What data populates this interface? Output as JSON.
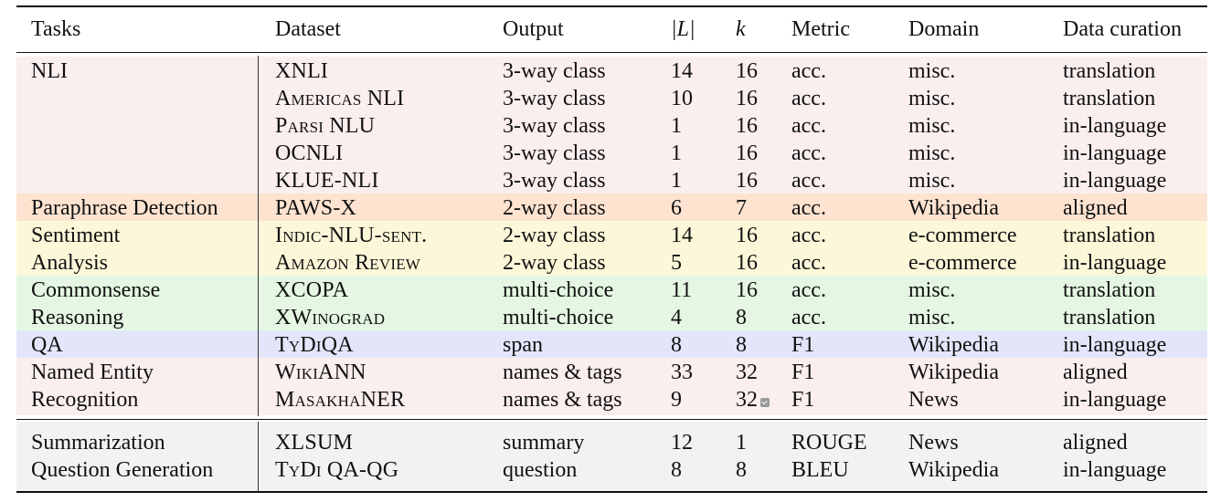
{
  "headers": {
    "tasks": "Tasks",
    "dataset": "Dataset",
    "output": "Output",
    "l": "|L|",
    "k": "k",
    "metric": "Metric",
    "domain": "Domain",
    "curation": "Data curation"
  },
  "colors": {
    "nli": "#fbeeee",
    "paraphrase": "#fde3d0",
    "sentiment": "#fdf7d9",
    "commonsense": "#e5f7e3",
    "qa": "#e3e6fa",
    "ner": "#fbeeee",
    "generation": "#f2f2f2"
  },
  "rows": [
    {
      "task": "NLI",
      "dataset": "XNLI",
      "output": "3-way class",
      "l": "14",
      "k": "16",
      "metric": "acc.",
      "domain": "misc.",
      "curation": "translation"
    },
    {
      "task": "",
      "dataset": "Americas NLI",
      "output": "3-way class",
      "l": "10",
      "k": "16",
      "metric": "acc.",
      "domain": "misc.",
      "curation": "translation"
    },
    {
      "task": "",
      "dataset": "Parsi NLU",
      "output": "3-way class",
      "l": "1",
      "k": "16",
      "metric": "acc.",
      "domain": "misc.",
      "curation": "in-language"
    },
    {
      "task": "",
      "dataset": "OCNLI",
      "output": "3-way class",
      "l": "1",
      "k": "16",
      "metric": "acc.",
      "domain": "misc.",
      "curation": "in-language"
    },
    {
      "task": "",
      "dataset": "KLUE-NLI",
      "output": "3-way class",
      "l": "1",
      "k": "16",
      "metric": "acc.",
      "domain": "misc.",
      "curation": "in-language"
    },
    {
      "task": "Paraphrase Detection",
      "dataset": "PAWS-X",
      "output": "2-way class",
      "l": "6",
      "k": "7",
      "metric": "acc.",
      "domain": "Wikipedia",
      "curation": "aligned"
    },
    {
      "task": "Sentiment",
      "dataset": "Indic-NLU-sent.",
      "output": "2-way class",
      "l": "14",
      "k": "16",
      "metric": "acc.",
      "domain": "e-commerce",
      "curation": "translation"
    },
    {
      "task": "Analysis",
      "dataset": "Amazon Review",
      "output": "2-way class",
      "l": "5",
      "k": "16",
      "metric": "acc.",
      "domain": "e-commerce",
      "curation": "in-language"
    },
    {
      "task": "Commonsense",
      "dataset": "XCOPA",
      "output": "multi-choice",
      "l": "11",
      "k": "16",
      "metric": "acc.",
      "domain": "misc.",
      "curation": "translation"
    },
    {
      "task": "Reasoning",
      "dataset": "XWinograd",
      "output": "multi-choice",
      "l": "4",
      "k": "8",
      "metric": "acc.",
      "domain": "misc.",
      "curation": "translation"
    },
    {
      "task": "QA",
      "dataset": "TyDiQA",
      "output": "span",
      "l": "8",
      "k": "8",
      "metric": "F1",
      "domain": "Wikipedia",
      "curation": "in-language"
    },
    {
      "task": "Named Entity",
      "dataset": "WikiANN",
      "output": "names & tags",
      "l": "33",
      "k": "32",
      "metric": "F1",
      "domain": "Wikipedia",
      "curation": "aligned"
    },
    {
      "task": "Recognition",
      "dataset": "MasakhaNER",
      "output": "names & tags",
      "l": "9",
      "k": "32",
      "metric": "F1",
      "domain": "News",
      "curation": "in-language"
    },
    {
      "task": "Summarization",
      "dataset": "XLSUM",
      "output": "summary",
      "l": "12",
      "k": "1",
      "metric": "ROUGE",
      "domain": "News",
      "curation": "aligned"
    },
    {
      "task": "Question Generation",
      "dataset": "TyDi QA-QG",
      "output": "question",
      "l": "8",
      "k": "8",
      "metric": "BLEU",
      "domain": "Wikipedia",
      "curation": "in-language"
    }
  ]
}
